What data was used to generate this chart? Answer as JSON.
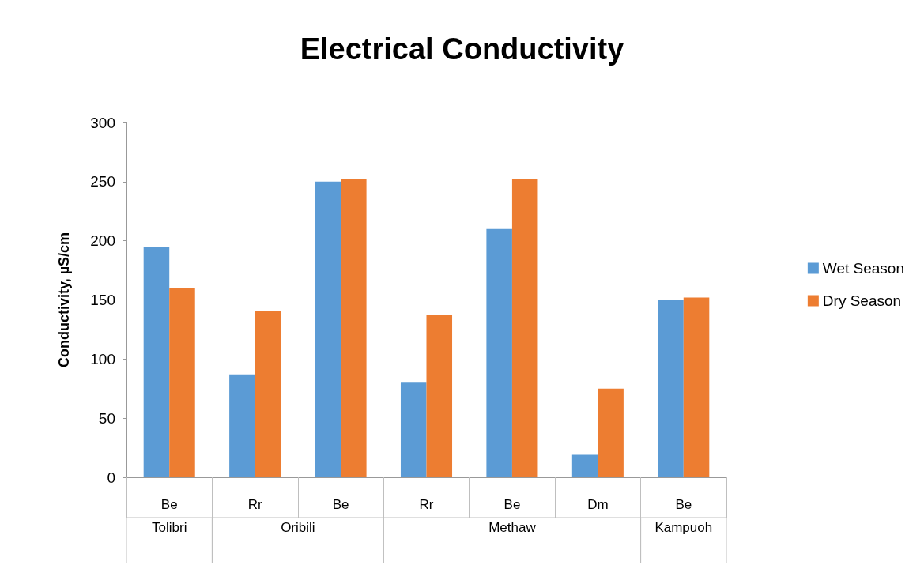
{
  "chart_data": {
    "type": "bar",
    "title": "Electrical Conductivity",
    "ylabel": "Conductivity, µS/cm",
    "categories": [
      "Be",
      "Rr",
      "Be",
      "Rr",
      "Be",
      "Dm",
      "Be"
    ],
    "series": [
      {
        "name": "Wet Season",
        "color": "#5b9bd5",
        "values": [
          195,
          87,
          250,
          80,
          210,
          19,
          150
        ]
      },
      {
        "name": "Dry Season",
        "color": "#ed7d31",
        "values": [
          160,
          141,
          252,
          137,
          252,
          75,
          152
        ]
      }
    ],
    "annotations": [
      "Tolibri",
      "Oribili",
      "Methaw",
      "Kampuoh"
    ],
    "ylim": [
      0,
      300
    ],
    "yticks": [
      0,
      50,
      100,
      150,
      200,
      250,
      300
    ],
    "grid": false,
    "legend": "right"
  }
}
